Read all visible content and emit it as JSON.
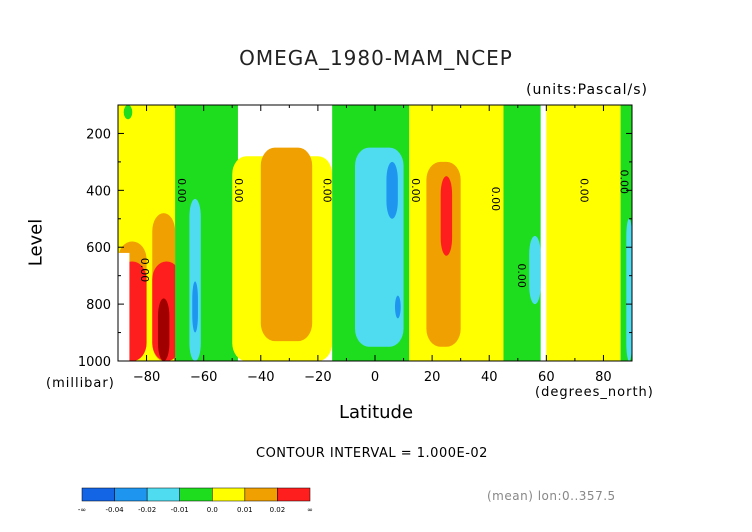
{
  "chart_data": {
    "type": "heatmap",
    "title": "OMEGA_1980-MAM_NCEP",
    "units": "(units:Pascal/s)",
    "xlabel": "Latitude",
    "xunits": "(degrees_north)",
    "ylabel": "Level",
    "yunits": "(millibar)",
    "xlim": [
      -90,
      90
    ],
    "ylim": [
      1000,
      100
    ],
    "xticks": [
      -80,
      -60,
      -40,
      -20,
      0,
      20,
      40,
      60,
      80
    ],
    "xtick_labels": [
      "−80",
      "−60",
      "−40",
      "−20",
      "0",
      "20",
      "40",
      "60",
      "80"
    ],
    "yticks": [
      200,
      400,
      600,
      800,
      1000
    ],
    "ytick_labels": [
      "200",
      "400",
      "600",
      "800",
      "1000"
    ],
    "contour_interval_text": "CONTOUR INTERVAL = 1.000E-02",
    "contour_line_label": "0.00",
    "mean_text": "(mean) lon:0..357.5",
    "colorbar": {
      "boundaries": [
        "-∞",
        "-0.04",
        "-0.02",
        "-0.01",
        "0.0",
        "0.01",
        "0.02",
        "∞"
      ],
      "colors": [
        "#1464e6",
        "#1e96f0",
        "#50dcf0",
        "#1edc1e",
        "#ffff00",
        "#f0a000",
        "#ff1e1e"
      ]
    },
    "band_colors": {
      "strong_negative": "#1464e6",
      "negative": "#1e96f0",
      "weak_negative": "#50dcf0",
      "near_zero_negative": "#1edc1e",
      "near_zero_positive": "#ffff00",
      "positive": "#f0a000",
      "strong_positive": "#ff1e1e",
      "extreme_positive": "#a00000"
    },
    "regions": [
      {
        "level": "near_zero_positive",
        "lat": [
          -90,
          -67
        ],
        "lev": [
          100,
          1000
        ]
      },
      {
        "level": "positive",
        "lat": [
          -90,
          -80
        ],
        "lev": [
          580,
          1000
        ]
      },
      {
        "level": "strong_positive",
        "lat": [
          -90,
          -80
        ],
        "lev": [
          650,
          1000
        ]
      },
      {
        "level": "near_zero_negative",
        "lat": [
          -88,
          -85
        ],
        "lev": [
          100,
          150
        ]
      },
      {
        "level": "positive",
        "lat": [
          -78,
          -70
        ],
        "lev": [
          480,
          1000
        ]
      },
      {
        "level": "strong_positive",
        "lat": [
          -78,
          -68
        ],
        "lev": [
          650,
          1000
        ]
      },
      {
        "level": "extreme_positive",
        "lat": [
          -76,
          -72
        ],
        "lev": [
          780,
          1000
        ]
      },
      {
        "level": "near_zero_negative",
        "lat": [
          -70,
          -48
        ],
        "lev": [
          100,
          1000
        ]
      },
      {
        "level": "weak_negative",
        "lat": [
          -65,
          -61
        ],
        "lev": [
          430,
          1000
        ]
      },
      {
        "level": "negative",
        "lat": [
          -64,
          -62
        ],
        "lev": [
          720,
          900
        ]
      },
      {
        "level": "near_zero_positive",
        "lat": [
          -50,
          -15
        ],
        "lev": [
          280,
          1000
        ]
      },
      {
        "level": "positive",
        "lat": [
          -40,
          -22
        ],
        "lev": [
          250,
          930
        ]
      },
      {
        "level": "near_zero_negative",
        "lat": [
          -15,
          12
        ],
        "lev": [
          100,
          1000
        ]
      },
      {
        "level": "weak_negative",
        "lat": [
          -7,
          10
        ],
        "lev": [
          250,
          950
        ]
      },
      {
        "level": "negative",
        "lat": [
          4,
          8
        ],
        "lev": [
          300,
          500
        ]
      },
      {
        "level": "negative",
        "lat": [
          7,
          9
        ],
        "lev": [
          770,
          850
        ]
      },
      {
        "level": "near_zero_positive",
        "lat": [
          12,
          48
        ],
        "lev": [
          100,
          1000
        ]
      },
      {
        "level": "positive",
        "lat": [
          18,
          30
        ],
        "lev": [
          300,
          950
        ]
      },
      {
        "level": "strong_positive",
        "lat": [
          23,
          27
        ],
        "lev": [
          350,
          630
        ]
      },
      {
        "level": "near_zero_negative",
        "lat": [
          45,
          58
        ],
        "lev": [
          100,
          1000
        ]
      },
      {
        "level": "weak_negative",
        "lat": [
          54,
          58
        ],
        "lev": [
          560,
          800
        ]
      },
      {
        "level": "near_zero_positive",
        "lat": [
          60,
          86
        ],
        "lev": [
          100,
          1000
        ]
      },
      {
        "level": "near_zero_negative",
        "lat": [
          86,
          90
        ],
        "lev": [
          100,
          1000
        ]
      },
      {
        "level": "weak_negative",
        "lat": [
          88,
          90
        ],
        "lev": [
          500,
          1000
        ]
      }
    ],
    "contour_labels": [
      {
        "lat": -69,
        "lev": 400
      },
      {
        "lat": -82,
        "lev": 680
      },
      {
        "lat": -49,
        "lev": 400
      },
      {
        "lat": -18,
        "lev": 400
      },
      {
        "lat": 13,
        "lev": 400
      },
      {
        "lat": 41,
        "lev": 430
      },
      {
        "lat": 50,
        "lev": 700
      },
      {
        "lat": 72,
        "lev": 400
      },
      {
        "lat": 86,
        "lev": 370
      }
    ]
  }
}
